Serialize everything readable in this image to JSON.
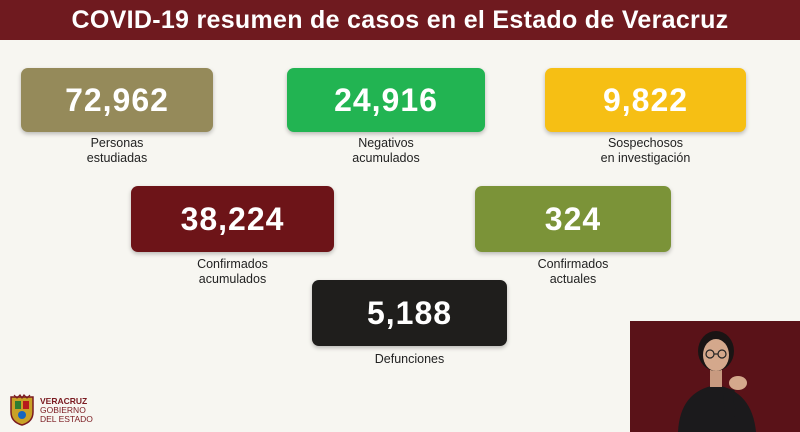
{
  "banner": {
    "title": "COVID-19 resumen de casos en el Estado de Veracruz"
  },
  "stats": [
    {
      "value": "72,962",
      "label_lines": [
        "Personas",
        "estudiadas"
      ],
      "color": "#958a5a"
    },
    {
      "value": "24,916",
      "label_lines": [
        "Negativos",
        "acumulados"
      ],
      "color": "#22b452"
    },
    {
      "value": "9,822",
      "label_lines": [
        "Sospechosos",
        "en investigación"
      ],
      "color": "#f6bf14"
    },
    {
      "value": "38,224",
      "label_lines": [
        "Confirmados",
        "acumulados"
      ],
      "color": "#6d1418"
    },
    {
      "value": "324",
      "label_lines": [
        "Confirmados",
        "actuales"
      ],
      "color": "#7b9338"
    },
    {
      "value": "5,188",
      "label_lines": [
        "Defunciones"
      ],
      "color": "#1f1e1c"
    }
  ],
  "logo": {
    "line1": "VERACRUZ",
    "line2": "GOBIERNO",
    "line3": "DEL ESTADO"
  },
  "colors": {
    "banner": "#6f1a1f",
    "background": "#f7f6f1",
    "interpreter_bg": "#5a1218"
  }
}
